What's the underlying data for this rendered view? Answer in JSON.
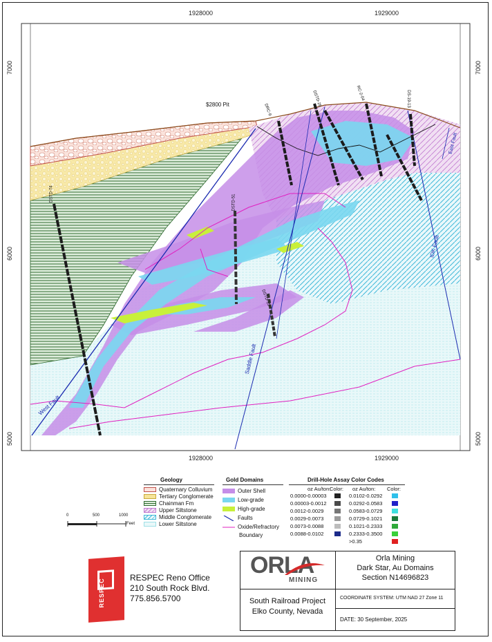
{
  "grid": {
    "x_top": [
      "1928000",
      "1929000"
    ],
    "x_bottom": [
      "1928000",
      "1929000"
    ],
    "y_left": [
      "7000",
      "6000",
      "5000"
    ],
    "y_right": [
      "7000",
      "6000",
      "5000"
    ]
  },
  "map_labels": {
    "pit": "$2800 Pit",
    "west_fault": "West Fault",
    "saddle_fault": "Saddle Fault",
    "idk_fault": "IDK Fault",
    "east_fault": "East Fault"
  },
  "drill_holes": [
    "DSTD-74",
    "DSTD-51",
    "DSTD-15",
    "DRC-9",
    "DSTD-26",
    "RC-2-04",
    "DSTD-38",
    "DS-19-13"
  ],
  "legend": {
    "geology": {
      "title": "Geology",
      "items": [
        {
          "label": "Quaternary Colluvium",
          "color": "#f2c6b8"
        },
        {
          "label": "Tertiary Conglomerate",
          "color": "#f6e59a"
        },
        {
          "label": "Chainman Fm",
          "color": "#6fa36b"
        },
        {
          "label": "Upper Siltstone",
          "color": "#e3bfe6"
        },
        {
          "label": "Middle Conglomerate",
          "color": "#7fd0e0"
        },
        {
          "label": "Lower Siltstone",
          "color": "#cfeff2"
        }
      ]
    },
    "gold": {
      "title": "Gold Domains",
      "items": [
        {
          "label": "Outer Shell",
          "color": "#c58ee8"
        },
        {
          "label": "Low-grade",
          "color": "#7ad7f0"
        },
        {
          "label": "High-grade",
          "color": "#c8f03a"
        }
      ],
      "faults": "Faults",
      "oxide": "Oxide/Refractory",
      "boundary": "Boundary"
    },
    "assay": {
      "title": "Drill-Hole Assay Color Codes",
      "header": "oz Au/ton:",
      "color_header": "Color:",
      "left": [
        {
          "range": "0.0000-0.00003",
          "color": "#222222"
        },
        {
          "range": "0.00003-0.0012",
          "color": "#4a4a4a"
        },
        {
          "range": "0.0012-0.0029",
          "color": "#777777"
        },
        {
          "range": "0.0029-0.0073",
          "color": "#9b9b9b"
        },
        {
          "range": "0.0073-0.0088",
          "color": "#bdbdbd"
        },
        {
          "range": "0.0088-0.0102",
          "color": "#1c2b8a"
        }
      ],
      "right": [
        {
          "range": "0.0102-0.0292",
          "color": "#2fc0ea"
        },
        {
          "range": "0.0292-0.0583",
          "color": "#2020c8"
        },
        {
          "range": "0.0583-0.0729",
          "color": "#3fe0e0"
        },
        {
          "range": "0.0729-0.1021",
          "color": "#1a7a3a"
        },
        {
          "range": "0.1021-0.2333",
          "color": "#2faa3a"
        },
        {
          "range": "0.2333-0.3500",
          "color": "#39d039"
        },
        {
          "range": ">0.35",
          "color": "#e02020"
        }
      ]
    }
  },
  "scale": {
    "labels": [
      "0",
      "500",
      "1000"
    ],
    "unit": "Feet"
  },
  "respec": {
    "logo_text": "RESPEC",
    "line1": "RESPEC Reno Office",
    "line2": "210 South Rock Blvd.",
    "line3": "775.856.5700"
  },
  "title_block": {
    "company": "ORLA",
    "mining": "MINING",
    "title1": "Orla Mining",
    "title2": "Dark Star, Au Domains",
    "title3": "Section N14696823",
    "project1": "South Railroad Project",
    "project2": "Elko County, Nevada",
    "coord": "COORDINATE SYSTEM: UTM NAD 27 Zone 11",
    "date": "DATE: 30 September, 2025"
  },
  "colors": {
    "colluvium": "#f2c6b8",
    "conglomerate": "#f6e59a",
    "chainman": "#6fa36b",
    "upper_silt": "#e3bfe6",
    "middle_cong": "#7fd0e0",
    "lower_silt": "#d6f2f4",
    "outer_shell": "#c58ee8",
    "low_grade": "#7ad7f0",
    "high_grade": "#c8f03a",
    "fault": "#1a2ab0",
    "oxide": "#e020c0",
    "respec_red": "#e03030",
    "orla_red": "#d42a2a"
  }
}
